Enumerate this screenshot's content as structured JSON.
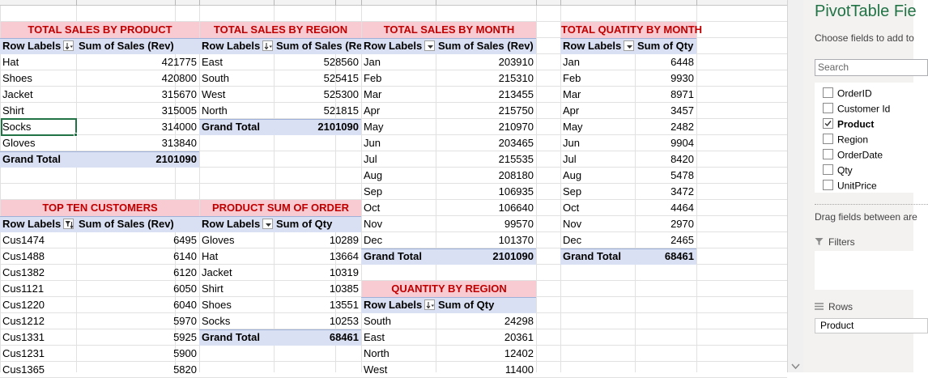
{
  "colors": {
    "title_bg": "#f8cbd2",
    "title_text": "#c00000",
    "header_bg": "#dae0f3",
    "excel_green": "#217346"
  },
  "tables": {
    "sales_by_product": {
      "title": "TOTAL SALES BY PRODUCT",
      "header": [
        "Row Labels",
        "Sum of Sales (Rev)"
      ],
      "rows": [
        [
          "Hat",
          "421775"
        ],
        [
          "Shoes",
          "420800"
        ],
        [
          "Jacket",
          "315670"
        ],
        [
          "Shirt",
          "315005"
        ],
        [
          "Socks",
          "314000"
        ],
        [
          "Gloves",
          "313840"
        ]
      ],
      "total": [
        "Grand Total",
        "2101090"
      ]
    },
    "sales_by_region": {
      "title": "TOTAL SALES BY REGION",
      "header": [
        "Row Labels",
        "Sum of Sales (Rev"
      ],
      "rows": [
        [
          "East",
          "528560"
        ],
        [
          "South",
          "525415"
        ],
        [
          "West",
          "525300"
        ],
        [
          "North",
          "521815"
        ]
      ],
      "total": [
        "Grand Total",
        "2101090"
      ]
    },
    "sales_by_month": {
      "title": "TOTAL SALES BY MONTH",
      "header": [
        "Row Labels",
        "Sum of Sales (Rev)"
      ],
      "rows": [
        [
          "Jan",
          "203910"
        ],
        [
          "Feb",
          "215310"
        ],
        [
          "Mar",
          "213455"
        ],
        [
          "Apr",
          "215750"
        ],
        [
          "May",
          "210970"
        ],
        [
          "Jun",
          "203465"
        ],
        [
          "Jul",
          "215535"
        ],
        [
          "Aug",
          "208180"
        ],
        [
          "Sep",
          "106935"
        ],
        [
          "Oct",
          "106640"
        ],
        [
          "Nov",
          "99570"
        ],
        [
          "Dec",
          "101370"
        ]
      ],
      "total": [
        "Grand Total",
        "2101090"
      ]
    },
    "qty_by_month": {
      "title": "TOTAL QUATITY BY MONTH",
      "header": [
        "Row Labels",
        "Sum of Qty"
      ],
      "rows": [
        [
          "Jan",
          "6448"
        ],
        [
          "Feb",
          "9930"
        ],
        [
          "Mar",
          "8971"
        ],
        [
          "Apr",
          "3457"
        ],
        [
          "May",
          "2482"
        ],
        [
          "Jun",
          "9904"
        ],
        [
          "Jul",
          "8420"
        ],
        [
          "Aug",
          "5478"
        ],
        [
          "Sep",
          "3472"
        ],
        [
          "Oct",
          "4464"
        ],
        [
          "Nov",
          "2970"
        ],
        [
          "Dec",
          "2465"
        ]
      ],
      "total": [
        "Grand Total",
        "68461"
      ]
    },
    "top_customers": {
      "title": "TOP TEN CUSTOMERS",
      "header": [
        "Row Labels",
        "Sum of Sales (Rev)"
      ],
      "rows": [
        [
          "Cus1474",
          "6495"
        ],
        [
          "Cus1488",
          "6140"
        ],
        [
          "Cus1382",
          "6120"
        ],
        [
          "Cus1121",
          "6050"
        ],
        [
          "Cus1220",
          "6040"
        ],
        [
          "Cus1212",
          "5970"
        ],
        [
          "Cus1331",
          "5925"
        ],
        [
          "Cus1231",
          "5900"
        ],
        [
          "Cus1365",
          "5820"
        ]
      ]
    },
    "product_sum_order": {
      "title": "PRODUCT SUM OF ORDER",
      "header": [
        "Row Labels",
        "Sum of Qty"
      ],
      "rows": [
        [
          "Gloves",
          "10289"
        ],
        [
          "Hat",
          "13664"
        ],
        [
          "Jacket",
          "10319"
        ],
        [
          "Shirt",
          "10385"
        ],
        [
          "Shoes",
          "13551"
        ],
        [
          "Socks",
          "10253"
        ]
      ],
      "total": [
        "Grand Total",
        "68461"
      ]
    },
    "qty_by_region": {
      "title": "QUANTITY BY REGION",
      "header": [
        "Row Labels",
        "Sum of Qty"
      ],
      "rows": [
        [
          "South",
          "24298"
        ],
        [
          "East",
          "20361"
        ],
        [
          "North",
          "12402"
        ],
        [
          "West",
          "11400"
        ]
      ]
    }
  },
  "pane": {
    "title": "PivotTable Fie",
    "description": "Choose fields to add to",
    "search_placeholder": "Search",
    "fields": [
      {
        "label": "OrderID",
        "checked": false
      },
      {
        "label": "Customer Id",
        "checked": false
      },
      {
        "label": "Product",
        "checked": true
      },
      {
        "label": "Region",
        "checked": false
      },
      {
        "label": "OrderDate",
        "checked": false
      },
      {
        "label": "Qty",
        "checked": false
      },
      {
        "label": "UnitPrice",
        "checked": false
      }
    ],
    "drag_text": "Drag fields between are",
    "filters_label": "Filters",
    "rows_label": "Rows",
    "rows_value": "Product"
  }
}
